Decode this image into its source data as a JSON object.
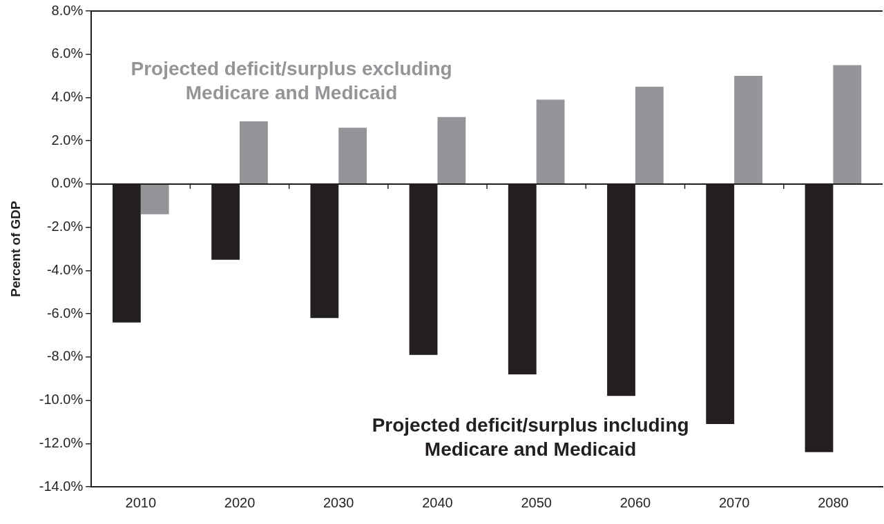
{
  "chart_data": {
    "type": "bar",
    "ylabel": "Percent of GDP",
    "categories": [
      "2010",
      "2020",
      "2030",
      "2040",
      "2050",
      "2060",
      "2070",
      "2080"
    ],
    "series": [
      {
        "name": "Projected deficit/surplus including Medicare and Medicaid",
        "color": "#231f20",
        "values": [
          -6.4,
          -3.5,
          -6.2,
          -7.9,
          -8.8,
          -9.8,
          -11.1,
          -12.4
        ]
      },
      {
        "name": "Projected deficit/surplus excluding Medicare and Medicaid",
        "color": "#939598",
        "values": [
          -1.4,
          2.9,
          2.6,
          3.1,
          3.9,
          4.5,
          5.0,
          5.5
        ]
      }
    ],
    "ylim": [
      -14,
      8
    ],
    "yticks": [
      {
        "value": -14,
        "label": "-14.0%"
      },
      {
        "value": -12,
        "label": "-12.0%"
      },
      {
        "value": -10,
        "label": "-10.0%"
      },
      {
        "value": -8,
        "label": "-8.0%"
      },
      {
        "value": -6,
        "label": "-6.0%"
      },
      {
        "value": -4,
        "label": "-4.0%"
      },
      {
        "value": -2,
        "label": "-2.0%"
      },
      {
        "value": 0,
        "label": "0.0%"
      },
      {
        "value": 2,
        "label": "2.0%"
      },
      {
        "value": 4,
        "label": "4.0%"
      },
      {
        "value": 6,
        "label": "6.0%"
      },
      {
        "value": 8,
        "label": "8.0%"
      }
    ]
  }
}
